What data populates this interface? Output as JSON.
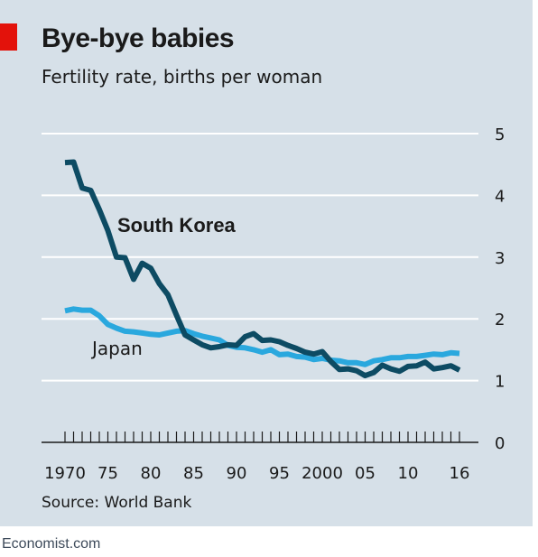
{
  "header": {
    "title": "Bye-bye babies",
    "subtitle": "Fertility rate, births per woman"
  },
  "footer": {
    "source": "Source: World Bank",
    "brand": "Economist.com"
  },
  "colors": {
    "background": "#d6e0e8",
    "accent": "#e3120b",
    "south_korea": "#0d4b63",
    "japan": "#2aa8de",
    "gridline": "#ffffff",
    "axis": "#1a1a1a"
  },
  "chart_data": {
    "type": "line",
    "title": "Bye-bye babies",
    "subtitle": "Fertility rate, births per woman",
    "xlim": [
      1970,
      2016
    ],
    "ylim": [
      0,
      5
    ],
    "grid": true,
    "yaxis_side": "right",
    "x_tick_labels": [
      {
        "x": 1970,
        "label": "1970"
      },
      {
        "x": 1975,
        "label": "75"
      },
      {
        "x": 1980,
        "label": "80"
      },
      {
        "x": 1985,
        "label": "85"
      },
      {
        "x": 1990,
        "label": "90"
      },
      {
        "x": 1995,
        "label": "95"
      },
      {
        "x": 2000,
        "label": "2000"
      },
      {
        "x": 2005,
        "label": "05"
      },
      {
        "x": 2010,
        "label": "10"
      },
      {
        "x": 2016,
        "label": "16"
      }
    ],
    "y_ticks": [
      0,
      1,
      2,
      3,
      4,
      5
    ],
    "x": [
      1970,
      1971,
      1972,
      1973,
      1974,
      1975,
      1976,
      1977,
      1978,
      1979,
      1980,
      1981,
      1982,
      1983,
      1984,
      1985,
      1986,
      1987,
      1988,
      1989,
      1990,
      1991,
      1992,
      1993,
      1994,
      1995,
      1996,
      1997,
      1998,
      1999,
      2000,
      2001,
      2002,
      2003,
      2004,
      2005,
      2006,
      2007,
      2008,
      2009,
      2010,
      2011,
      2012,
      2013,
      2014,
      2015,
      2016
    ],
    "series": [
      {
        "name": "South Korea",
        "values": [
          4.53,
          4.54,
          4.12,
          4.08,
          3.77,
          3.43,
          3.0,
          2.99,
          2.64,
          2.9,
          2.82,
          2.57,
          2.39,
          2.06,
          1.74,
          1.66,
          1.58,
          1.53,
          1.55,
          1.58,
          1.57,
          1.71,
          1.76,
          1.65,
          1.66,
          1.63,
          1.57,
          1.52,
          1.46,
          1.43,
          1.47,
          1.31,
          1.18,
          1.19,
          1.16,
          1.08,
          1.13,
          1.25,
          1.19,
          1.15,
          1.23,
          1.24,
          1.3,
          1.19,
          1.21,
          1.24,
          1.17
        ]
      },
      {
        "name": "Japan",
        "values": [
          2.13,
          2.16,
          2.14,
          2.14,
          2.05,
          1.91,
          1.85,
          1.8,
          1.79,
          1.77,
          1.75,
          1.74,
          1.77,
          1.8,
          1.81,
          1.76,
          1.72,
          1.69,
          1.66,
          1.57,
          1.54,
          1.53,
          1.5,
          1.46,
          1.5,
          1.42,
          1.43,
          1.39,
          1.38,
          1.34,
          1.36,
          1.33,
          1.32,
          1.29,
          1.29,
          1.26,
          1.32,
          1.34,
          1.37,
          1.37,
          1.39,
          1.39,
          1.41,
          1.43,
          1.42,
          1.45,
          1.44
        ]
      }
    ]
  }
}
